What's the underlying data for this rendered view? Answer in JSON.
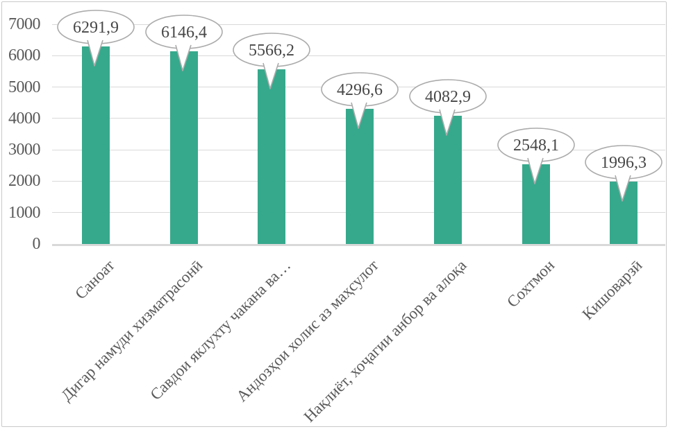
{
  "chart_data": {
    "type": "bar",
    "title": "",
    "xlabel": "",
    "ylabel": "",
    "categories": [
      "Саноат",
      "Дигар намуди хизматрасонӣ",
      "Савдои яклухту чакана ва…",
      "Андозҳои холис аз маҳсулот",
      "Нақлиёт, хоҷагии анбор ва алоқа",
      "Сохтмон",
      "Кишоварзӣ"
    ],
    "values": [
      6291.9,
      6146.4,
      5566.2,
      4296.6,
      4082.9,
      2548.1,
      1996.3
    ],
    "data_labels": [
      "6291,9",
      "6146,4",
      "5566,2",
      "4296,6",
      "4082,9",
      "2548,1",
      "1996,3"
    ],
    "data_label_style": "oval-callout",
    "ylim": [
      0,
      7000
    ],
    "ytick_step": 1000,
    "ytick_labels": [
      "0",
      "1000",
      "2000",
      "3000",
      "4000",
      "5000",
      "6000",
      "7000"
    ],
    "grid": "horizontal",
    "legend": "none",
    "x_label_rotation_deg": 45,
    "colors": {
      "bar": "#36a98c",
      "gridline": "#d9d9d9",
      "axis_line": "#d9d9d9",
      "axis_text": "#595959",
      "callout_fill": "#ffffff",
      "callout_border": "#ababab",
      "callout_text": "#474747",
      "frame_border": "#c9c9c9",
      "background": "#ffffff"
    }
  }
}
